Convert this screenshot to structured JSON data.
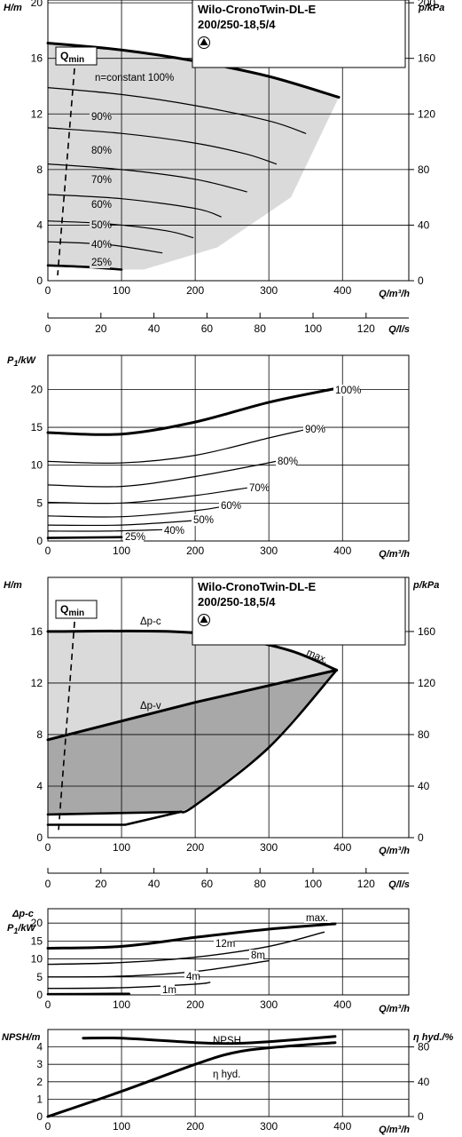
{
  "chart_data": [
    {
      "type": "line",
      "id": "head_speed",
      "title": "Wilo-CronoTwin-DL-E",
      "subtitle": "200/250-18,5/4",
      "ylabel": "H/m",
      "y2label": "p/kPa",
      "xlabel": "Q/m³/h",
      "qmin_label": "Q",
      "qmin_sub": "min",
      "xlim": [
        0,
        490
      ],
      "ylim": [
        0,
        20.2
      ],
      "x_ticks": [
        "0",
        "100",
        "200",
        "300",
        "400"
      ],
      "y_ticks": [
        "0",
        "4",
        "8",
        "12",
        "16",
        "20"
      ],
      "y2_ticks": [
        "0",
        "40",
        "80",
        "120",
        "160",
        "200"
      ],
      "series": [
        {
          "name": "n=constant 100%",
          "x": [
            0,
            100,
            200,
            300,
            395
          ],
          "y": [
            17.1,
            16.6,
            15.8,
            14.7,
            13.2
          ]
        },
        {
          "name": "90%",
          "x": [
            0,
            100,
            200,
            300,
            350
          ],
          "y": [
            13.9,
            13.4,
            12.6,
            11.5,
            10.6
          ]
        },
        {
          "name": "80%",
          "x": [
            0,
            100,
            200,
            270,
            310
          ],
          "y": [
            11.0,
            10.6,
            9.9,
            9.1,
            8.4
          ]
        },
        {
          "name": "70%",
          "x": [
            0,
            100,
            200,
            270
          ],
          "y": [
            8.4,
            8.0,
            7.3,
            6.4
          ]
        },
        {
          "name": "60%",
          "x": [
            0,
            100,
            200,
            235
          ],
          "y": [
            6.2,
            5.9,
            5.2,
            4.6
          ]
        },
        {
          "name": "50%",
          "x": [
            0,
            80,
            160,
            197
          ],
          "y": [
            4.3,
            4.1,
            3.6,
            3.1
          ]
        },
        {
          "name": "40%",
          "x": [
            0,
            80,
            155
          ],
          "y": [
            2.8,
            2.6,
            2.0
          ]
        },
        {
          "name": "25%",
          "x": [
            0,
            50,
            100
          ],
          "y": [
            1.1,
            1.0,
            0.8
          ]
        }
      ]
    },
    {
      "type": "line",
      "id": "flow_ls_axis",
      "xlabel": "Q/l/s",
      "x_ticks": [
        "0",
        "20",
        "40",
        "60",
        "80",
        "100",
        "120"
      ]
    },
    {
      "type": "line",
      "id": "power_speed",
      "ylabel": "P1/kW",
      "ylabel_main": "P",
      "ylabel_sub": "1",
      "ylabel_unit": "/kW",
      "xlabel": "Q/m³/h",
      "xlim": [
        0,
        490
      ],
      "ylim": [
        0,
        24.5
      ],
      "x_ticks": [
        "0",
        "100",
        "200",
        "300",
        "400"
      ],
      "y_ticks": [
        "0",
        "5",
        "10",
        "15",
        "20"
      ],
      "series": [
        {
          "name": "100%",
          "x": [
            0,
            100,
            200,
            300,
            390
          ],
          "y": [
            14.3,
            14.1,
            15.7,
            18.3,
            20.1
          ]
        },
        {
          "name": "90%",
          "x": [
            0,
            100,
            200,
            300,
            350
          ],
          "y": [
            10.5,
            10.3,
            11.3,
            13.6,
            14.7
          ]
        },
        {
          "name": "80%",
          "x": [
            0,
            100,
            200,
            310
          ],
          "y": [
            7.4,
            7.2,
            8.5,
            10.5
          ]
        },
        {
          "name": "70%",
          "x": [
            0,
            100,
            200,
            270
          ],
          "y": [
            5.1,
            5.0,
            6.0,
            7.0
          ]
        },
        {
          "name": "60%",
          "x": [
            0,
            100,
            200,
            240
          ],
          "y": [
            3.3,
            3.2,
            4.0,
            4.6
          ]
        },
        {
          "name": "50%",
          "x": [
            0,
            100,
            200
          ],
          "y": [
            2.1,
            2.1,
            2.7
          ]
        },
        {
          "name": "40%",
          "x": [
            0,
            80,
            160
          ],
          "y": [
            1.3,
            1.3,
            1.5
          ]
        },
        {
          "name": "25%",
          "x": [
            0,
            100
          ],
          "y": [
            0.4,
            0.5
          ]
        }
      ]
    },
    {
      "type": "area",
      "id": "head_control",
      "title": "Wilo-CronoTwin-DL-E",
      "subtitle": "200/250-18,5/4",
      "ylabel": "H/m",
      "y2label": "p/kPa",
      "xlabel": "Q/m³/h",
      "qmin_label": "Q",
      "qmin_sub": "min",
      "xlim": [
        0,
        490
      ],
      "ylim": [
        0,
        20.2
      ],
      "x_ticks": [
        "0",
        "100",
        "200",
        "300",
        "400"
      ],
      "y_ticks": [
        "0",
        "4",
        "8",
        "12",
        "16"
      ],
      "y2_ticks": [
        "0",
        "40",
        "80",
        "120",
        "160"
      ],
      "annotations": [
        "Δp-c",
        "Δp-v",
        "max."
      ],
      "series": [
        {
          "name": "Δp-c",
          "x": [
            0,
            165,
            250,
            330,
            392
          ],
          "y": [
            16.0,
            16.0,
            15.5,
            14.5,
            13.0
          ]
        },
        {
          "name": "Δp-v",
          "x": [
            0,
            200,
            392
          ],
          "y": [
            7.6,
            10.5,
            13.0
          ]
        },
        {
          "name": "max.",
          "x": [
            392,
            300,
            200,
            180
          ],
          "y": [
            13.0,
            7.0,
            2.5,
            2.0
          ]
        },
        {
          "name": "min",
          "x": [
            0,
            180
          ],
          "y": [
            1.8,
            2.0
          ]
        }
      ]
    },
    {
      "type": "line",
      "id": "flow_ls_axis_2",
      "xlabel": "Q/l/s",
      "x_ticks": [
        "0",
        "20",
        "40",
        "60",
        "80",
        "100",
        "120"
      ]
    },
    {
      "type": "line",
      "id": "power_control",
      "ylabel_top": "Δp-c",
      "ylabel_main": "P",
      "ylabel_sub": "1",
      "ylabel_unit": "/kW",
      "xlabel": "Q/m³/h",
      "xlim": [
        0,
        490
      ],
      "ylim": [
        0,
        24
      ],
      "x_ticks": [
        "0",
        "100",
        "200",
        "300",
        "400"
      ],
      "y_ticks": [
        "0",
        "5",
        "10",
        "15",
        "20"
      ],
      "series": [
        {
          "name": "max.",
          "x": [
            0,
            100,
            200,
            300,
            390
          ],
          "y": [
            13.0,
            13.5,
            16.0,
            18.3,
            19.8
          ]
        },
        {
          "name": "12m",
          "x": [
            0,
            100,
            200,
            300,
            375
          ],
          "y": [
            8.5,
            9.0,
            10.5,
            13.5,
            17.5
          ]
        },
        {
          "name": "8m",
          "x": [
            0,
            100,
            200,
            300
          ],
          "y": [
            5.0,
            5.2,
            6.5,
            9.5
          ]
        },
        {
          "name": "4m",
          "x": [
            0,
            100,
            200,
            220
          ],
          "y": [
            1.8,
            2.0,
            3.0,
            3.5
          ]
        },
        {
          "name": "1m",
          "x": [
            0,
            100,
            108
          ],
          "y": [
            0.2,
            0.3,
            0.3
          ]
        }
      ]
    },
    {
      "type": "line",
      "id": "npsh_efficiency",
      "ylabel": "NPSH/m",
      "y2label": "η hyd./%",
      "xlabel": "Q/m³/h",
      "xlim": [
        0,
        490
      ],
      "ylim": [
        0,
        5
      ],
      "x_ticks": [
        "0",
        "100",
        "200",
        "300",
        "400"
      ],
      "y_ticks": [
        "0",
        "1",
        "2",
        "3",
        "4"
      ],
      "y2_ticks": [
        "0",
        "40",
        "80"
      ],
      "series": [
        {
          "name": "NPSH",
          "x": [
            48,
            100,
            200,
            250,
            300,
            390
          ],
          "y": [
            4.5,
            4.5,
            4.25,
            4.2,
            4.3,
            4.6
          ]
        },
        {
          "name": "η hyd.",
          "x": [
            0,
            100,
            200,
            250,
            300,
            390
          ],
          "y": [
            0,
            29,
            60,
            73,
            79,
            85
          ]
        }
      ]
    }
  ]
}
